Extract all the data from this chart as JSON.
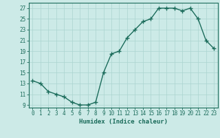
{
  "x": [
    0,
    1,
    2,
    3,
    4,
    5,
    6,
    7,
    8,
    9,
    10,
    11,
    12,
    13,
    14,
    15,
    16,
    17,
    18,
    19,
    20,
    21,
    22,
    23
  ],
  "y": [
    13.5,
    13.0,
    11.5,
    11.0,
    10.5,
    9.5,
    9.0,
    9.0,
    9.5,
    15.0,
    18.5,
    19.0,
    21.5,
    23.0,
    24.5,
    25.0,
    27.0,
    27.0,
    27.0,
    26.5,
    27.0,
    25.0,
    21.0,
    19.5
  ],
  "line_color": "#1a6b5a",
  "marker": "+",
  "marker_size": 4,
  "bg_color": "#cceae7",
  "grid_color": "#aad4d0",
  "xlabel": "Humidex (Indice chaleur)",
  "xlim": [
    -0.5,
    23.5
  ],
  "ylim": [
    8.5,
    28
  ],
  "yticks": [
    9,
    11,
    13,
    15,
    17,
    19,
    21,
    23,
    25,
    27
  ],
  "xticks": [
    0,
    1,
    2,
    3,
    4,
    5,
    6,
    7,
    8,
    9,
    10,
    11,
    12,
    13,
    14,
    15,
    16,
    17,
    18,
    19,
    20,
    21,
    22,
    23
  ],
  "tick_label_fontsize": 5.5,
  "xlabel_fontsize": 6.5,
  "line_width": 1.0,
  "tick_color": "#1a6b5a",
  "axis_color": "#1a6b5a"
}
